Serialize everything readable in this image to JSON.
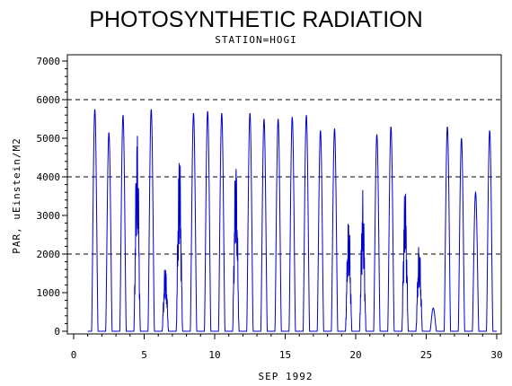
{
  "chart_data": {
    "type": "line",
    "title": "PHOTOSYNTHETIC RADIATION",
    "subtitle": "STATION=HOGI",
    "xlabel": "SEP 1992",
    "ylabel": "PAR, uEinstein/M2",
    "xlim": [
      0,
      30
    ],
    "ylim": [
      0,
      7000
    ],
    "x_ticks": [
      0,
      5,
      10,
      15,
      20,
      25,
      30
    ],
    "y_ticks": [
      0,
      1000,
      2000,
      3000,
      4000,
      5000,
      6000,
      7000
    ],
    "reference_lines": [
      2000,
      4000,
      6000
    ],
    "series_color": "#0000cc",
    "daily_peaks": [
      {
        "day": 1,
        "peak": 5750
      },
      {
        "day": 2,
        "peak": 5150
      },
      {
        "day": 3,
        "peak": 5600
      },
      {
        "day": 4,
        "peak": 5500
      },
      {
        "day": 5,
        "peak": 5750
      },
      {
        "day": 6,
        "peak": 1800
      },
      {
        "day": 7,
        "peak": 4850
      },
      {
        "day": 8,
        "peak": 5650
      },
      {
        "day": 9,
        "peak": 5700
      },
      {
        "day": 10,
        "peak": 5650
      },
      {
        "day": 11,
        "peak": 4750
      },
      {
        "day": 12,
        "peak": 5650
      },
      {
        "day": 13,
        "peak": 5500
      },
      {
        "day": 14,
        "peak": 5500
      },
      {
        "day": 15,
        "peak": 5550
      },
      {
        "day": 16,
        "peak": 5600
      },
      {
        "day": 17,
        "peak": 5200
      },
      {
        "day": 18,
        "peak": 5250
      },
      {
        "day": 19,
        "peak": 3150
      },
      {
        "day": 20,
        "peak": 3700
      },
      {
        "day": 21,
        "peak": 5100
      },
      {
        "day": 22,
        "peak": 5300
      },
      {
        "day": 23,
        "peak": 3900
      },
      {
        "day": 24,
        "peak": 2400
      },
      {
        "day": 25,
        "peak": 600
      },
      {
        "day": 26,
        "peak": 5300
      },
      {
        "day": 27,
        "peak": 5000
      },
      {
        "day": 28,
        "peak": 3600
      },
      {
        "day": 29,
        "peak": 5200
      }
    ]
  }
}
